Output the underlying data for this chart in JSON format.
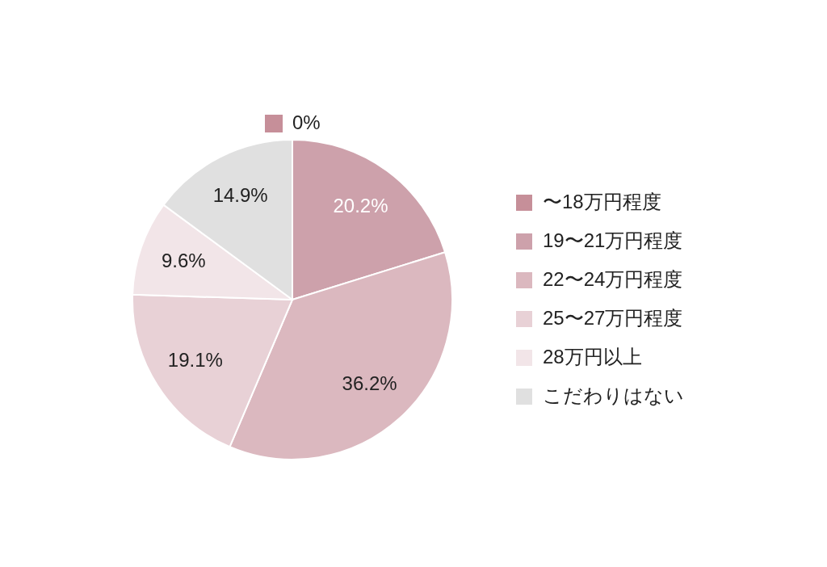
{
  "chart_data": {
    "type": "pie",
    "categories": [
      "〜18万円程度",
      "19〜21万円程度",
      "22〜24万円程度",
      "25〜27万円程度",
      "28万円以上",
      "こだわりはない"
    ],
    "values": [
      0,
      20.2,
      36.2,
      19.1,
      9.6,
      14.9
    ],
    "colors": [
      "#c68f99",
      "#cda1ab",
      "#dbb8bf",
      "#e8d1d6",
      "#f2e5e8",
      "#e0e0e0"
    ],
    "value_labels": [
      "0%",
      "20.2%",
      "36.2%",
      "19.1%",
      "9.6%",
      "14.9%"
    ],
    "legend": "right"
  }
}
